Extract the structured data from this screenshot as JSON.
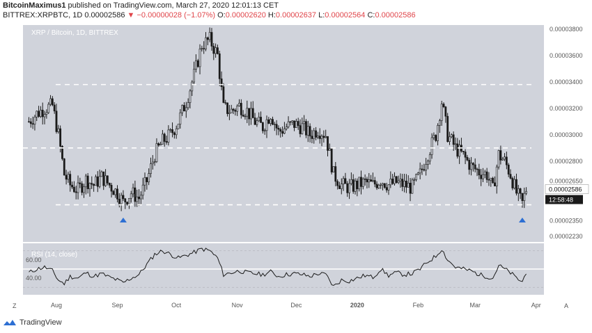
{
  "header": {
    "author": "BitcoinMaximus1",
    "published_text": "published on TradingView.com, March 27, 2020 12:01:13 CET",
    "symbol": "BITTREX:XRPBTC, 1D",
    "last": "0.00002586",
    "change": "▼ −0.00000028 (−1.07%)",
    "o_label": "O:",
    "o_value": "0.00002620",
    "h_label": "H:",
    "h_value": "0.00002637",
    "l_label": "L:",
    "l_value": "0.00002564",
    "c_label": "C:",
    "c_value": "0.00002586"
  },
  "colors": {
    "plot_bg": "#d0d3db",
    "candle": "#1a1a1a",
    "dashed_line": "#ffffff",
    "rsi_line": "#1a1a1a",
    "rsi_level": "#ffffff",
    "marker": "#2d6fd3",
    "last_label_bg": "#ffffff",
    "timer_bg": "#1a1a1a"
  },
  "footer": {
    "brand": "TradingView",
    "logo_icon": "tradingview-logo-icon"
  },
  "chart_data": [
    {
      "type": "candlestick",
      "title": "XRP / Bitcoin, 1D, BITTREX",
      "x_ticks": [
        "Aug",
        "Sep",
        "Oct",
        "Nov",
        "Dec",
        "2020",
        "Feb",
        "Mar",
        "Apr"
      ],
      "y_ticks": [
        "0.00003800",
        "0.00003600",
        "0.00003400",
        "0.00003200",
        "0.00003000",
        "0.00002800",
        "0.00002650",
        "0.00002586",
        "0.00002350",
        "0.00002230"
      ],
      "last_price": "0.00002586",
      "countdown": "12:58:48",
      "horizontal_levels": [
        3.38e-05,
        2.9e-05,
        2.47e-05
      ],
      "markers": [
        {
          "x": "Sep 4, 2019",
          "label": "up-triangle"
        },
        {
          "x": "Mar 25, 2020",
          "label": "up-triangle"
        }
      ],
      "ohlc_path": [
        [
          "2019-07-18",
          3.1e-05
        ],
        [
          "2019-07-22",
          3.16e-05
        ],
        [
          "2019-07-26",
          3.2e-05
        ],
        [
          "2019-07-30",
          3.22e-05
        ],
        [
          "2019-08-02",
          3e-05
        ],
        [
          "2019-08-05",
          2.7e-05
        ],
        [
          "2019-08-08",
          2.62e-05
        ],
        [
          "2019-08-12",
          2.58e-05
        ],
        [
          "2019-08-16",
          2.66e-05
        ],
        [
          "2019-08-20",
          2.62e-05
        ],
        [
          "2019-08-24",
          2.68e-05
        ],
        [
          "2019-08-28",
          2.62e-05
        ],
        [
          "2019-09-01",
          2.56e-05
        ],
        [
          "2019-09-04",
          2.49e-05
        ],
        [
          "2019-09-08",
          2.56e-05
        ],
        [
          "2019-09-12",
          2.52e-05
        ],
        [
          "2019-09-16",
          2.65e-05
        ],
        [
          "2019-09-20",
          2.85e-05
        ],
        [
          "2019-09-24",
          2.95e-05
        ],
        [
          "2019-09-28",
          3e-05
        ],
        [
          "2019-10-02",
          3.1e-05
        ],
        [
          "2019-10-06",
          3.25e-05
        ],
        [
          "2019-10-10",
          3.45e-05
        ],
        [
          "2019-10-14",
          3.68e-05
        ],
        [
          "2019-10-18",
          3.72e-05
        ],
        [
          "2019-10-22",
          3.6e-05
        ],
        [
          "2019-10-25",
          3.2e-05
        ],
        [
          "2019-10-29",
          3.18e-05
        ],
        [
          "2019-11-02",
          3.22e-05
        ],
        [
          "2019-11-06",
          3.18e-05
        ],
        [
          "2019-11-10",
          3.1e-05
        ],
        [
          "2019-11-14",
          3.06e-05
        ],
        [
          "2019-11-18",
          3.16e-05
        ],
        [
          "2019-11-22",
          3.02e-05
        ],
        [
          "2019-11-26",
          3.06e-05
        ],
        [
          "2019-11-30",
          3.08e-05
        ],
        [
          "2019-12-04",
          3.06e-05
        ],
        [
          "2019-12-08",
          3e-05
        ],
        [
          "2019-12-12",
          3.04e-05
        ],
        [
          "2019-12-16",
          3e-05
        ],
        [
          "2019-12-20",
          2.7e-05
        ],
        [
          "2019-12-24",
          2.62e-05
        ],
        [
          "2019-12-28",
          2.6e-05
        ],
        [
          "2020-01-01",
          2.62e-05
        ],
        [
          "2020-01-05",
          2.64e-05
        ],
        [
          "2020-01-09",
          2.62e-05
        ],
        [
          "2020-01-13",
          2.66e-05
        ],
        [
          "2020-01-17",
          2.62e-05
        ],
        [
          "2020-01-21",
          2.64e-05
        ],
        [
          "2020-01-25",
          2.62e-05
        ],
        [
          "2020-01-29",
          2.6e-05
        ],
        [
          "2020-02-02",
          2.7e-05
        ],
        [
          "2020-02-06",
          2.86e-05
        ],
        [
          "2020-02-10",
          3e-05
        ],
        [
          "2020-02-13",
          3.25e-05
        ],
        [
          "2020-02-16",
          3e-05
        ],
        [
          "2020-02-20",
          2.9e-05
        ],
        [
          "2020-02-24",
          2.84e-05
        ],
        [
          "2020-02-28",
          2.76e-05
        ],
        [
          "2020-03-03",
          2.72e-05
        ],
        [
          "2020-03-07",
          2.7e-05
        ],
        [
          "2020-03-10",
          2.58e-05
        ],
        [
          "2020-03-13",
          2.85e-05
        ],
        [
          "2020-03-16",
          2.8e-05
        ],
        [
          "2020-03-19",
          2.7e-05
        ],
        [
          "2020-03-22",
          2.56e-05
        ],
        [
          "2020-03-25",
          2.48e-05
        ],
        [
          "2020-03-27",
          2.59e-05
        ]
      ]
    },
    {
      "type": "line",
      "title": "RSI (14, close)",
      "y_ticks": [
        "60.00",
        "40.00"
      ],
      "levels": [
        70,
        30
      ],
      "rsi_path": [
        [
          "2019-07-18",
          46
        ],
        [
          "2019-07-22",
          50
        ],
        [
          "2019-07-26",
          52
        ],
        [
          "2019-07-30",
          48
        ],
        [
          "2019-08-02",
          38
        ],
        [
          "2019-08-05",
          34
        ],
        [
          "2019-08-08",
          42
        ],
        [
          "2019-08-12",
          40
        ],
        [
          "2019-08-16",
          46
        ],
        [
          "2019-08-20",
          42
        ],
        [
          "2019-08-24",
          45
        ],
        [
          "2019-08-28",
          41
        ],
        [
          "2019-09-01",
          38
        ],
        [
          "2019-09-04",
          35
        ],
        [
          "2019-09-08",
          40
        ],
        [
          "2019-09-12",
          44
        ],
        [
          "2019-09-16",
          55
        ],
        [
          "2019-09-20",
          66
        ],
        [
          "2019-09-24",
          70
        ],
        [
          "2019-09-28",
          66
        ],
        [
          "2019-10-02",
          62
        ],
        [
          "2019-10-06",
          65
        ],
        [
          "2019-10-10",
          68
        ],
        [
          "2019-10-14",
          72
        ],
        [
          "2019-10-18",
          70
        ],
        [
          "2019-10-22",
          62
        ],
        [
          "2019-10-25",
          44
        ],
        [
          "2019-10-29",
          46
        ],
        [
          "2019-11-02",
          48
        ],
        [
          "2019-11-06",
          46
        ],
        [
          "2019-11-10",
          45
        ],
        [
          "2019-11-14",
          44
        ],
        [
          "2019-11-18",
          47
        ],
        [
          "2019-11-22",
          42
        ],
        [
          "2019-11-26",
          44
        ],
        [
          "2019-11-30",
          45
        ],
        [
          "2019-12-04",
          44
        ],
        [
          "2019-12-08",
          42
        ],
        [
          "2019-12-12",
          45
        ],
        [
          "2019-12-16",
          44
        ],
        [
          "2019-12-20",
          31
        ],
        [
          "2019-12-24",
          38
        ],
        [
          "2019-12-28",
          37
        ],
        [
          "2020-01-01",
          40
        ],
        [
          "2020-01-05",
          43
        ],
        [
          "2020-01-09",
          41
        ],
        [
          "2020-01-13",
          50
        ],
        [
          "2020-01-17",
          43
        ],
        [
          "2020-01-21",
          46
        ],
        [
          "2020-01-25",
          44
        ],
        [
          "2020-01-29",
          45
        ],
        [
          "2020-02-02",
          50
        ],
        [
          "2020-02-06",
          58
        ],
        [
          "2020-02-10",
          64
        ],
        [
          "2020-02-13",
          72
        ],
        [
          "2020-02-16",
          60
        ],
        [
          "2020-02-20",
          52
        ],
        [
          "2020-02-24",
          50
        ],
        [
          "2020-02-28",
          48
        ],
        [
          "2020-03-03",
          44
        ],
        [
          "2020-03-07",
          42
        ],
        [
          "2020-03-10",
          40
        ],
        [
          "2020-03-13",
          54
        ],
        [
          "2020-03-16",
          50
        ],
        [
          "2020-03-19",
          46
        ],
        [
          "2020-03-22",
          40
        ],
        [
          "2020-03-25",
          36
        ],
        [
          "2020-03-27",
          47
        ]
      ]
    }
  ]
}
